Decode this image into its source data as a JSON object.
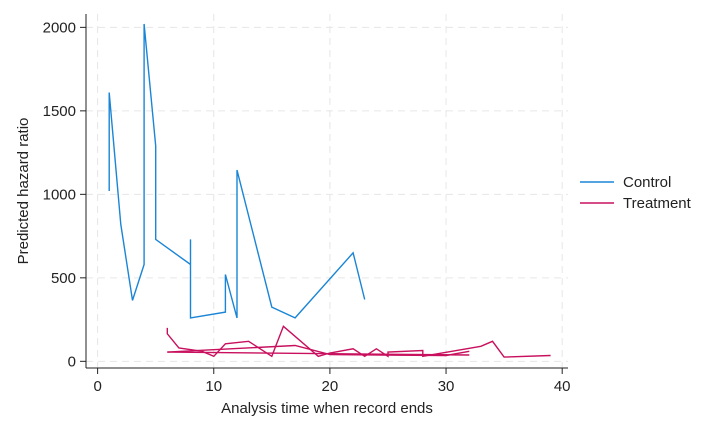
{
  "chart_data": {
    "type": "line",
    "title": "",
    "xlabel": "Analysis time when record ends",
    "ylabel": "Predicted hazard ratio",
    "xlim": [
      -1,
      40.5
    ],
    "ylim": [
      -40,
      2080
    ],
    "xticks": [
      0,
      10,
      20,
      30,
      40
    ],
    "yticks": [
      0,
      500,
      1000,
      1500,
      2000
    ],
    "grid": true,
    "legend_position": "right",
    "series": [
      {
        "name": "Control",
        "color": "#1a85d6",
        "points": [
          [
            1,
            1020
          ],
          [
            1,
            1610
          ],
          [
            2,
            820
          ],
          [
            3,
            365
          ],
          [
            4,
            580
          ],
          [
            4,
            2020
          ],
          [
            5,
            1290
          ],
          [
            5,
            730
          ],
          [
            8,
            580
          ],
          [
            8,
            730
          ],
          [
            8,
            260
          ],
          [
            11,
            295
          ],
          [
            11,
            520
          ],
          [
            12,
            260
          ],
          [
            12,
            1145
          ],
          [
            15,
            325
          ],
          [
            17,
            260
          ],
          [
            22,
            650
          ],
          [
            23,
            370
          ]
        ]
      },
      {
        "name": "Treatment",
        "color": "#c8105e",
        "points": [
          [
            6,
            200
          ],
          [
            6,
            165
          ],
          [
            7,
            80
          ],
          [
            9,
            60
          ],
          [
            10,
            30
          ],
          [
            11,
            105
          ],
          [
            13,
            120
          ],
          [
            15,
            30
          ],
          [
            16,
            210
          ],
          [
            19,
            30
          ],
          [
            20,
            50
          ],
          [
            22,
            75
          ],
          [
            23,
            30
          ],
          [
            24,
            75
          ],
          [
            25,
            30
          ],
          [
            25,
            55
          ],
          [
            28,
            65
          ],
          [
            28,
            30
          ],
          [
            33,
            90
          ],
          [
            34,
            120
          ],
          [
            35,
            25
          ],
          [
            39,
            35
          ]
        ]
      },
      {
        "name": "Treatment",
        "color": "#c8105e",
        "points": [
          [
            6,
            55
          ],
          [
            17,
            95
          ],
          [
            20,
            40
          ],
          [
            30,
            35
          ],
          [
            32,
            60
          ]
        ]
      },
      {
        "name": "Treatment",
        "color": "#c8105e",
        "points": [
          [
            6,
            55
          ],
          [
            32,
            38
          ]
        ]
      }
    ]
  },
  "legend": [
    {
      "label": "Control",
      "color": "#1a85d6"
    },
    {
      "label": "Treatment",
      "color": "#c8105e"
    }
  ]
}
